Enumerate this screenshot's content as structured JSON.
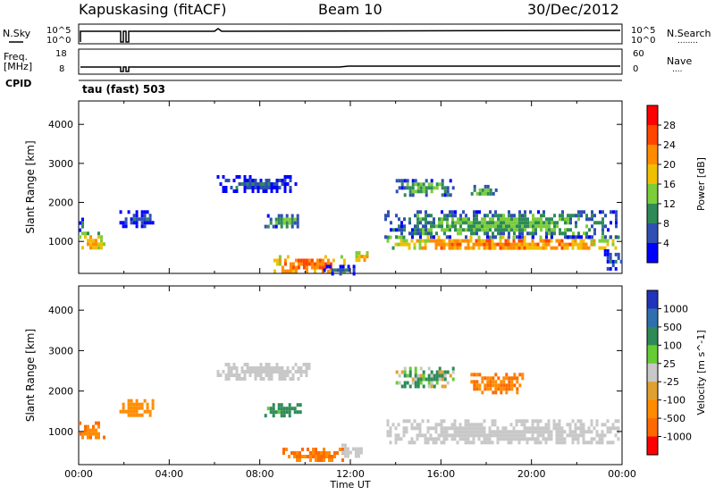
{
  "header": {
    "station": "Kapuskasing (fitACF)",
    "beam": "Beam 10",
    "date": "30/Dec/2012"
  },
  "param_panels": {
    "left_labels": {
      "nsky": "N.Sky",
      "freq_top": "Freq.",
      "freq_unit": "[MHz]",
      "cpid": "CPID"
    },
    "right_labels": {
      "nsearch": "N.Search",
      "nsearch_dots": "........",
      "nave": "Nave",
      "nave_dots": "...."
    },
    "nsky_ticks": {
      "top": "10^5",
      "bottom": "10^0"
    },
    "nsearch_ticks": {
      "top": "10^5",
      "bottom": "10^0"
    },
    "freq_ticks": {
      "top": "18",
      "bottom": "8"
    },
    "nave_ticks": {
      "top": "60",
      "bottom": "0"
    },
    "cpid_text": "tau (fast) 503"
  },
  "colors": {
    "power_scale": [
      "#0000ff",
      "#2f4fb3",
      "#2e8b57",
      "#7ccd3a",
      "#f0c000",
      "#ff8c00",
      "#ff4500",
      "#ff0000"
    ],
    "velocity_scale": [
      "#2233bb",
      "#2f6fb0",
      "#2e8b57",
      "#66cc33",
      "#c8c8c8",
      "#e0a030",
      "#ff8c00",
      "#ff6a00",
      "#ff0000"
    ]
  },
  "chart_data": [
    {
      "type": "heatmap",
      "title": "Power",
      "ylabel": "Slant Range [km]",
      "xlabel": "",
      "xlim": [
        "00:00",
        "24:00"
      ],
      "ylim": [
        180,
        4600
      ],
      "yticks": [
        "1000",
        "2000",
        "3000",
        "4000"
      ],
      "colorbar": {
        "label": "Power [dB]",
        "ticks": [
          "4",
          "8",
          "12",
          "16",
          "20",
          "24",
          "28"
        ],
        "range": [
          0,
          32
        ]
      },
      "regions": [
        {
          "t0": 0.0,
          "t1": 1.1,
          "r0": 800,
          "r1": 1250,
          "value": 20
        },
        {
          "t0": 0.0,
          "t1": 0.2,
          "r0": 1300,
          "r1": 1700,
          "value": 8
        },
        {
          "t0": 1.8,
          "t1": 3.3,
          "r0": 1400,
          "r1": 1800,
          "value": 6
        },
        {
          "t0": 6.1,
          "t1": 9.6,
          "r0": 2300,
          "r1": 2700,
          "value": 6
        },
        {
          "t0": 8.2,
          "t1": 9.8,
          "r0": 1400,
          "r1": 1700,
          "value": 12
        },
        {
          "t0": 8.6,
          "t1": 11.7,
          "r0": 250,
          "r1": 650,
          "value": 24
        },
        {
          "t0": 10.8,
          "t1": 12.3,
          "r0": 200,
          "r1": 400,
          "value": 8
        },
        {
          "t0": 12.1,
          "t1": 12.8,
          "r0": 500,
          "r1": 750,
          "value": 22
        },
        {
          "t0": 13.6,
          "t1": 23.9,
          "r0": 800,
          "r1": 1150,
          "value": 22
        },
        {
          "t0": 13.5,
          "t1": 23.9,
          "r0": 1150,
          "r1": 1800,
          "value": 12
        },
        {
          "t0": 14.0,
          "t1": 16.5,
          "r0": 2200,
          "r1": 2600,
          "value": 12
        },
        {
          "t0": 17.2,
          "t1": 18.5,
          "r0": 2200,
          "r1": 2450,
          "value": 12
        },
        {
          "t0": 23.2,
          "t1": 24.0,
          "r0": 300,
          "r1": 800,
          "value": 6
        }
      ]
    },
    {
      "type": "heatmap",
      "title": "Velocity",
      "ylabel": "Slant Range [km]",
      "xlabel": "Time UT",
      "xlim": [
        "00:00",
        "24:00"
      ],
      "ylim": [
        180,
        4600
      ],
      "yticks": [
        "1000",
        "2000",
        "3000",
        "4000"
      ],
      "xticks": [
        "00:00",
        "04:00",
        "08:00",
        "12:00",
        "16:00",
        "20:00",
        "00:00"
      ],
      "colorbar": {
        "label": "Velocity [m s^-1]",
        "ticks": [
          "1000",
          "500",
          "100",
          "25",
          "-25",
          "-100",
          "-500",
          "-1000"
        ]
      },
      "regions": [
        {
          "t0": 0.0,
          "t1": 1.1,
          "r0": 850,
          "r1": 1250,
          "value": -300
        },
        {
          "t0": 1.8,
          "t1": 3.3,
          "r0": 1400,
          "r1": 1800,
          "value": -200
        },
        {
          "t0": 6.1,
          "t1": 10.2,
          "r0": 2300,
          "r1": 2700,
          "value": 0
        },
        {
          "t0": 8.2,
          "t1": 9.8,
          "r0": 1400,
          "r1": 1700,
          "value": 150
        },
        {
          "t0": 9.0,
          "t1": 11.8,
          "r0": 250,
          "r1": 600,
          "value": -300
        },
        {
          "t0": 11.6,
          "t1": 12.6,
          "r0": 400,
          "r1": 700,
          "value": 0
        },
        {
          "t0": 13.6,
          "t1": 23.9,
          "r0": 700,
          "r1": 1300,
          "value": 0
        },
        {
          "t0": 14.0,
          "t1": 16.5,
          "r0": 2100,
          "r1": 2600,
          "value": 50
        },
        {
          "t0": 17.3,
          "t1": 19.6,
          "r0": 2000,
          "r1": 2450,
          "value": -300
        }
      ]
    }
  ]
}
